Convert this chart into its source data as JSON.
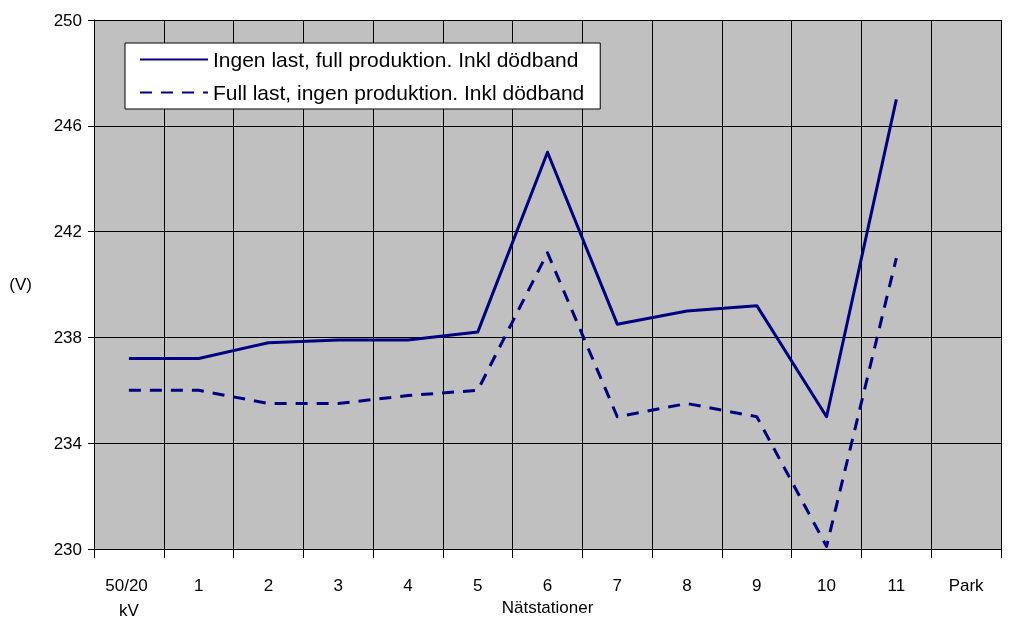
{
  "chart_data": {
    "type": "line",
    "xlabel": "Nätstationer",
    "ylabel": "(V)",
    "categories": [
      "50/20 kV",
      "1",
      "2",
      "3",
      "4",
      "5",
      "6",
      "7",
      "8",
      "9",
      "10",
      "11",
      "Park"
    ],
    "series": [
      {
        "name": "Ingen last, full produktion. Inkl dödband",
        "color": "#000080",
        "line_style": "solid",
        "values": [
          237.2,
          237.2,
          237.8,
          237.9,
          237.9,
          238.2,
          245,
          238.5,
          239,
          239.2,
          235,
          247,
          null
        ]
      },
      {
        "name": "Full last, ingen produktion. Inkl dödband",
        "color": "#000080",
        "line_style": "dashed",
        "values": [
          236,
          236,
          235.5,
          235.5,
          235.8,
          236,
          241.2,
          235,
          235.5,
          235,
          230.1,
          241,
          null
        ]
      }
    ],
    "ylim": [
      230,
      250
    ],
    "yticks": [
      230,
      234,
      238,
      242,
      246,
      250
    ],
    "grid": true,
    "legend": "top left",
    "marker": "none"
  }
}
